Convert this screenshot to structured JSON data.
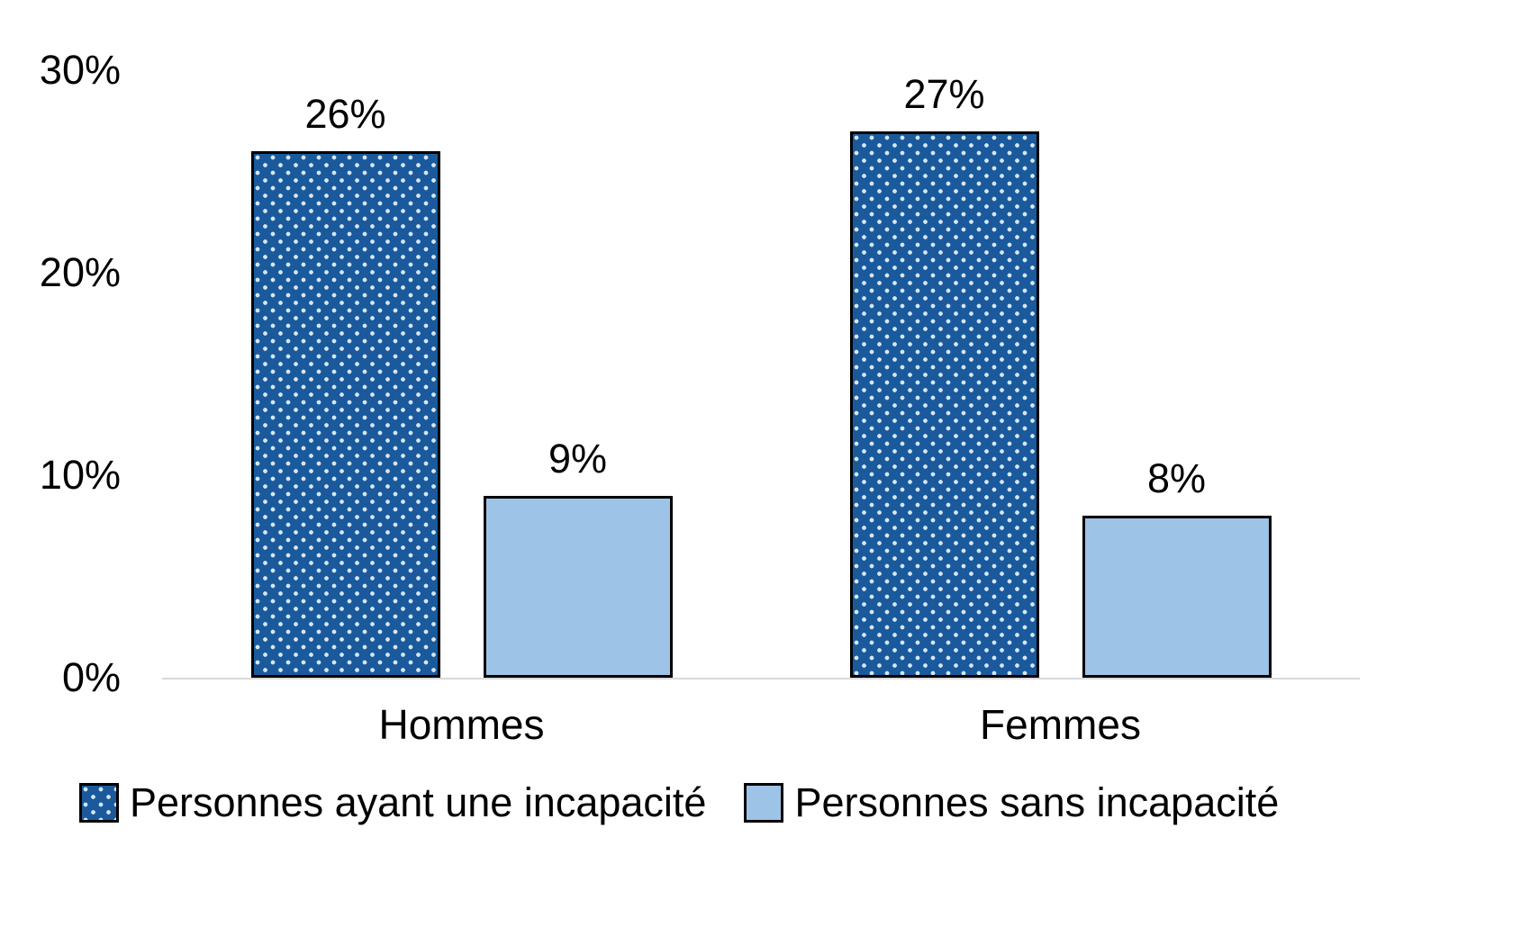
{
  "chart_data": {
    "type": "bar",
    "categories": [
      "Hommes",
      "Femmes"
    ],
    "series": [
      {
        "name": "Personnes ayant une incapacité",
        "values": [
          26,
          27
        ],
        "labels": [
          "26%",
          "27%"
        ],
        "color": "#1a5a9c",
        "pattern": "dots",
        "pattern_dot_color": "#d6e6f6"
      },
      {
        "name": "Personnes sans incapacité",
        "values": [
          9,
          8
        ],
        "labels": [
          "9%",
          "8%"
        ],
        "color": "#9dc3e6",
        "pattern": "solid"
      }
    ],
    "yticks": [
      {
        "label": "30%",
        "value": 30
      },
      {
        "label": "20%",
        "value": 20
      },
      {
        "label": "10%",
        "value": 10
      },
      {
        "label": "0%",
        "value": 0
      }
    ],
    "ylim": [
      0,
      30
    ],
    "xlabel": "",
    "ylabel": "",
    "title": "",
    "grid": false,
    "legend_position": "bottom",
    "axis_line_color": "#d9d9d9",
    "border_color": "#000000"
  }
}
